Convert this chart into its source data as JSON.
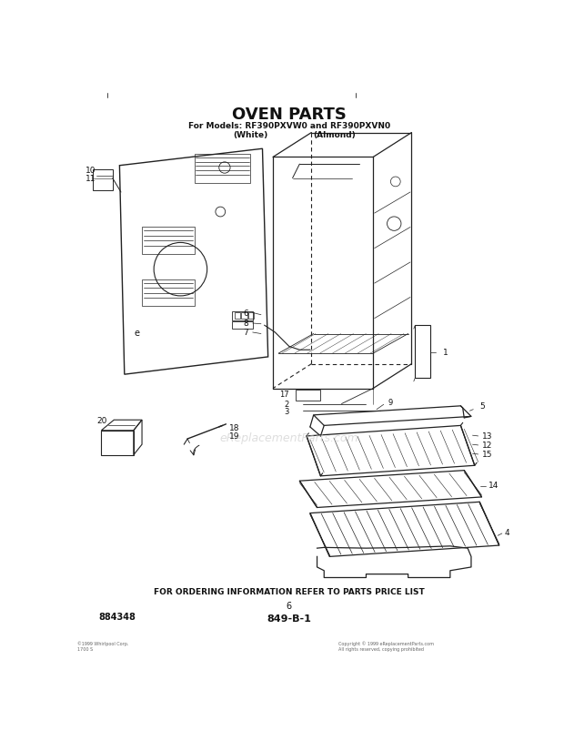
{
  "title": "OVEN PARTS",
  "subtitle_line1": "For Models: RF390PXVW0 and RF390PXVN0",
  "subtitle_white": "(White)",
  "subtitle_almond": "(Almond)",
  "bottom_text": "FOR ORDERING INFORMATION REFER TO PARTS PRICE LIST",
  "page_num": "6",
  "diagram_num": "849-B-1",
  "part_num": "884348",
  "watermark": "eReplacementParts.com",
  "bg_color": "#ffffff",
  "line_color": "#222222",
  "text_color": "#111111",
  "watermark_color": "#c8c8c8"
}
